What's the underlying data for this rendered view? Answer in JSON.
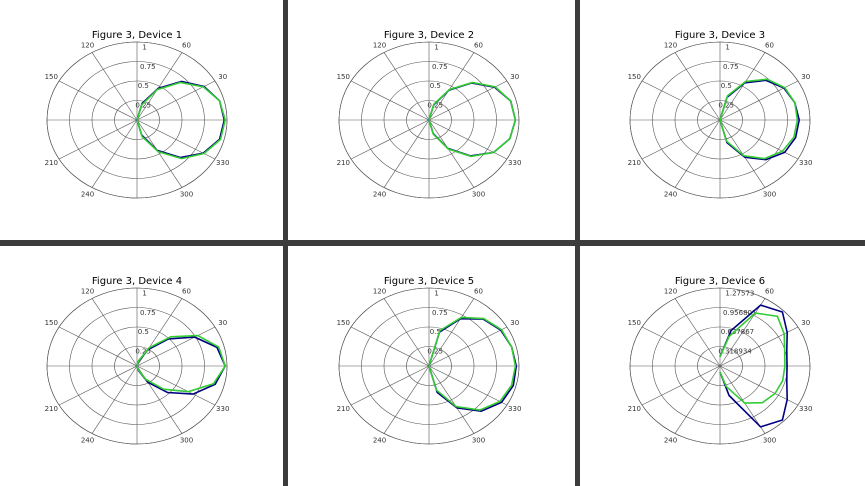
{
  "chart_data": [
    {
      "type": "polar",
      "title": "Figure 3, Device 1",
      "x": [
        -90,
        -75,
        -60,
        -45,
        -30,
        -15,
        0,
        15,
        30,
        45,
        60,
        75,
        90
      ],
      "angle_ticks": [
        30,
        60,
        120,
        150,
        210,
        240,
        300,
        330
      ],
      "rlim": [
        0,
        1
      ],
      "rticks": [
        0.25,
        0.5,
        0.75,
        1
      ],
      "series": [
        {
          "name": "blue",
          "color": "#000080",
          "values": [
            0,
            0.2,
            0.45,
            0.68,
            0.85,
            0.95,
            0.97,
            0.95,
            0.86,
            0.7,
            0.47,
            0.22,
            0
          ]
        },
        {
          "name": "green",
          "color": "#33cc33",
          "values": [
            0,
            0.22,
            0.47,
            0.7,
            0.86,
            0.96,
            0.98,
            0.95,
            0.85,
            0.68,
            0.45,
            0.2,
            0
          ]
        }
      ]
    },
    {
      "type": "polar",
      "title": "Figure 3, Device 2",
      "x": [
        -90,
        -75,
        -60,
        -45,
        -30,
        -15,
        0,
        15,
        30,
        45,
        60,
        75,
        90
      ],
      "angle_ticks": [
        30,
        60,
        120,
        150,
        210,
        240,
        300,
        330
      ],
      "rlim": [
        0,
        1
      ],
      "rticks": [
        0.25,
        0.5,
        0.75,
        1
      ],
      "series": [
        {
          "name": "blue",
          "color": "#000080",
          "values": [
            0,
            0.18,
            0.42,
            0.65,
            0.83,
            0.93,
            0.96,
            0.94,
            0.84,
            0.67,
            0.44,
            0.2,
            0
          ]
        },
        {
          "name": "green",
          "color": "#33cc33",
          "values": [
            0,
            0.19,
            0.43,
            0.66,
            0.83,
            0.93,
            0.96,
            0.94,
            0.85,
            0.68,
            0.45,
            0.21,
            0
          ]
        }
      ]
    },
    {
      "type": "polar",
      "title": "Figure 3, Device 3",
      "x": [
        -90,
        -75,
        -60,
        -45,
        -30,
        -15,
        0,
        15,
        30,
        45,
        60,
        75,
        90
      ],
      "angle_ticks": [
        30,
        60,
        120,
        150,
        210,
        240,
        300,
        330
      ],
      "rlim": [
        0,
        1
      ],
      "rticks": [
        0.25,
        0.5,
        0.75,
        1
      ],
      "series": [
        {
          "name": "blue",
          "color": "#000080",
          "values": [
            0,
            0.3,
            0.55,
            0.72,
            0.83,
            0.87,
            0.88,
            0.86,
            0.82,
            0.72,
            0.55,
            0.3,
            0
          ]
        },
        {
          "name": "green",
          "color": "#33cc33",
          "values": [
            0,
            0.28,
            0.53,
            0.7,
            0.8,
            0.85,
            0.86,
            0.86,
            0.83,
            0.74,
            0.57,
            0.32,
            0
          ]
        }
      ]
    },
    {
      "type": "polar",
      "title": "Figure 3, Device 4",
      "x": [
        -90,
        -75,
        -60,
        -45,
        -30,
        -15,
        0,
        15,
        30,
        45,
        60,
        75,
        90
      ],
      "angle_ticks": [
        30,
        60,
        120,
        150,
        210,
        240,
        300,
        330
      ],
      "rlim": [
        0,
        1
      ],
      "rticks": [
        0.25,
        0.5,
        0.75,
        1
      ],
      "series": [
        {
          "name": "blue",
          "color": "#000080",
          "values": [
            0,
            0.06,
            0.24,
            0.48,
            0.72,
            0.9,
            0.98,
            0.92,
            0.74,
            0.49,
            0.24,
            0.06,
            0
          ]
        },
        {
          "name": "green",
          "color": "#33cc33",
          "values": [
            0,
            0.05,
            0.2,
            0.42,
            0.66,
            0.88,
            0.98,
            0.94,
            0.78,
            0.53,
            0.27,
            0.07,
            0
          ]
        }
      ]
    },
    {
      "type": "polar",
      "title": "Figure 3, Device 5",
      "x": [
        -90,
        -75,
        -60,
        -45,
        -30,
        -15,
        0,
        15,
        30,
        45,
        60,
        75,
        90
      ],
      "angle_ticks": [
        30,
        60,
        120,
        150,
        210,
        240,
        300,
        330
      ],
      "rlim": [
        0,
        1
      ],
      "rticks": [
        0.25,
        0.5,
        0.75,
        1
      ],
      "series": [
        {
          "name": "blue",
          "color": "#000080",
          "values": [
            0,
            0.35,
            0.62,
            0.82,
            0.93,
            0.97,
            0.97,
            0.95,
            0.92,
            0.85,
            0.7,
            0.45,
            0
          ]
        },
        {
          "name": "green",
          "color": "#33cc33",
          "values": [
            0,
            0.32,
            0.6,
            0.8,
            0.91,
            0.95,
            0.96,
            0.95,
            0.93,
            0.86,
            0.72,
            0.47,
            0
          ]
        }
      ]
    },
    {
      "type": "polar",
      "title": "Figure 3, Device 6",
      "x": [
        -90,
        -75,
        -60,
        -45,
        -30,
        -15,
        0,
        15,
        30,
        45,
        60,
        75,
        90
      ],
      "angle_ticks": [
        30,
        60,
        120,
        150,
        210,
        240,
        300,
        330
      ],
      "rlim": [
        0,
        1.27573
      ],
      "rticks": [
        0.318934,
        0.637867,
        0.956801,
        1.27573
      ],
      "series": [
        {
          "name": "blue",
          "color": "#000080",
          "values": [
            0.1,
            0.5,
            1.15,
            1.25,
            1.1,
            0.98,
            0.95,
            0.98,
            1.1,
            1.25,
            1.15,
            0.6,
            0.15
          ]
        },
        {
          "name": "green",
          "color": "#33cc33",
          "values": [
            0.1,
            0.35,
            0.7,
            0.85,
            0.9,
            0.92,
            0.92,
            0.95,
            1.05,
            1.15,
            1.0,
            0.5,
            0.15
          ]
        }
      ]
    }
  ]
}
